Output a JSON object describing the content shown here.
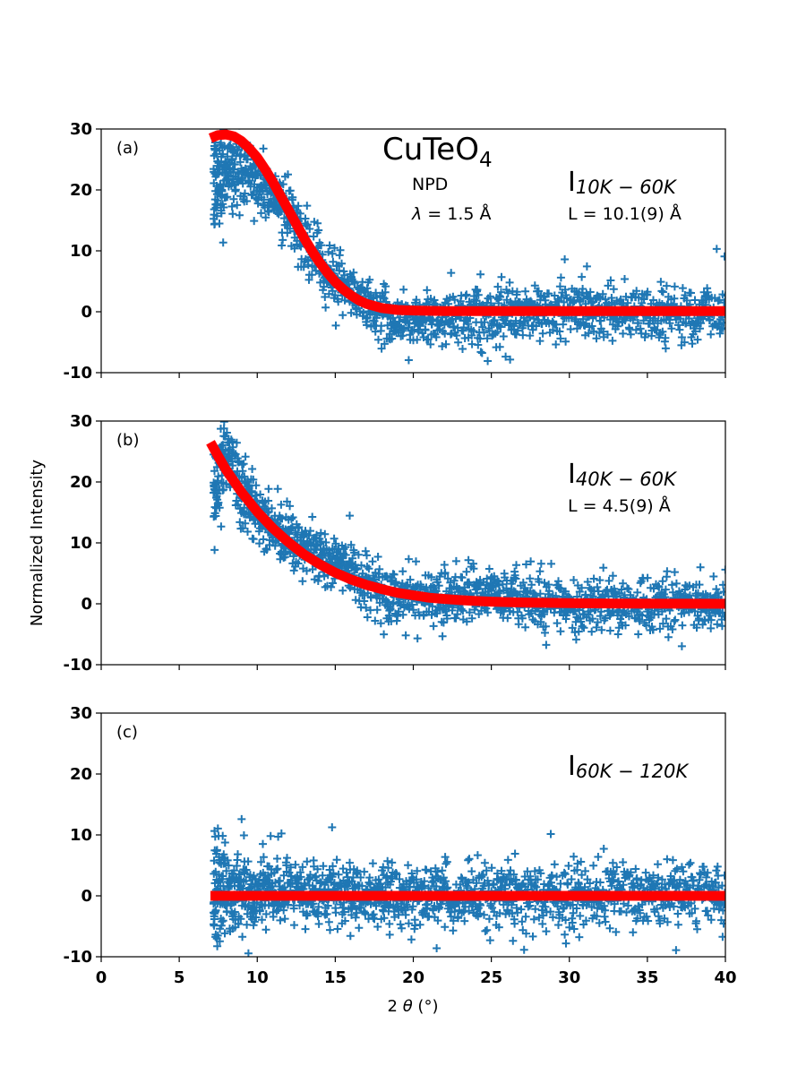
{
  "figure": {
    "title_base": "CuTeO",
    "title_sub": "4",
    "ylabel": "Normalized Intensity",
    "xlabel_prefix": "2 ",
    "xlabel_theta": "θ",
    "xlabel_suffix": " (°)",
    "info_technique": "NPD",
    "info_lambda_symbol": "λ",
    "info_lambda_value": " = 1.5 Å"
  },
  "colors": {
    "points": "#1f77b4",
    "fit": "#ff0000",
    "axes": "#000000"
  },
  "chart_data": [
    {
      "type": "scatter",
      "panel_label": "(a)",
      "annotation_main": "I",
      "annotation_sub": "10K − 60K",
      "annotation_L": "L = 10.1(9) Å",
      "xlim": [
        0,
        40
      ],
      "ylim": [
        -10,
        30
      ],
      "xticks": [
        "0",
        "5",
        "10",
        "15",
        "20",
        "25",
        "30",
        "35",
        "40"
      ],
      "yticks": [
        "-10",
        "0",
        "10",
        "20",
        "30"
      ],
      "data_x_range": [
        7.2,
        40
      ],
      "marker": "+",
      "fit": {
        "x": [
          7,
          7.5,
          8,
          8.5,
          9,
          9.5,
          10,
          10.5,
          11,
          11.5,
          12,
          12.5,
          13,
          13.5,
          14,
          14.5,
          15,
          15.5,
          16,
          16.5,
          17,
          18,
          19,
          20,
          22,
          25,
          30,
          35,
          40
        ],
        "y": [
          28.5,
          29.0,
          29.1,
          28.8,
          28.0,
          26.8,
          25.3,
          23.4,
          21.3,
          19.0,
          16.7,
          14.4,
          12.1,
          10.0,
          8.1,
          6.4,
          4.9,
          3.7,
          2.7,
          1.9,
          1.3,
          0.6,
          0.3,
          0.2,
          0.1,
          0.1,
          0.1,
          0.1,
          0.1
        ]
      },
      "trend": {
        "x": [
          7.2,
          8,
          9,
          10,
          11,
          12,
          13,
          14,
          15,
          16,
          17,
          18,
          19,
          20,
          22,
          24,
          25.5,
          27,
          30,
          33,
          36,
          40
        ],
        "y": [
          20,
          24,
          23.5,
          21.5,
          19,
          16,
          12,
          8.5,
          5.5,
          3,
          1.2,
          -0.3,
          -1.2,
          -1.5,
          -1,
          -0.6,
          -1.6,
          -0.2,
          0.5,
          0,
          -0.2,
          0.2
        ]
      },
      "noise": 2.3
    },
    {
      "type": "scatter",
      "panel_label": "(b)",
      "annotation_main": "I",
      "annotation_sub": "40K − 60K",
      "annotation_L": "L = 4.5(9) Å",
      "xlim": [
        0,
        40
      ],
      "ylim": [
        -10,
        30
      ],
      "xticks": [
        "0",
        "5",
        "10",
        "15",
        "20",
        "25",
        "30",
        "35",
        "40"
      ],
      "yticks": [
        "-10",
        "0",
        "10",
        "20",
        "30"
      ],
      "data_x_range": [
        7.2,
        40
      ],
      "marker": "+",
      "fit": {
        "x": [
          7,
          7.5,
          8,
          9,
          10,
          11,
          12,
          13,
          14,
          15,
          16,
          17,
          18,
          19,
          20,
          21,
          22,
          23,
          24,
          25,
          27,
          30,
          33,
          36,
          40
        ],
        "y": [
          26.5,
          24.2,
          22.0,
          18.3,
          15.1,
          12.4,
          10.1,
          8.1,
          6.5,
          5.1,
          4.0,
          3.1,
          2.4,
          1.8,
          1.4,
          1.0,
          0.8,
          0.6,
          0.45,
          0.35,
          0.2,
          0.1,
          0.05,
          0.02,
          0.0
        ]
      },
      "trend": {
        "x": [
          7.2,
          8,
          9,
          10,
          11,
          12,
          13,
          14,
          15,
          16,
          17,
          18,
          20,
          22,
          24,
          26,
          28,
          30,
          33,
          36,
          40
        ],
        "y": [
          18,
          26,
          19,
          14,
          12,
          11,
          9,
          8,
          7,
          6,
          3,
          1.5,
          1.5,
          1,
          2,
          1,
          0.5,
          0,
          -0.3,
          0,
          -0.2
        ]
      },
      "noise": 2.2
    },
    {
      "type": "scatter",
      "panel_label": "(c)",
      "annotation_main": "I",
      "annotation_sub": "60K − 120K",
      "annotation_L": "",
      "xlim": [
        0,
        40
      ],
      "ylim": [
        -10,
        30
      ],
      "xticks": [
        "0",
        "5",
        "10",
        "15",
        "20",
        "25",
        "30",
        "35",
        "40"
      ],
      "yticks": [
        "-10",
        "0",
        "10",
        "20",
        "30"
      ],
      "data_x_range": [
        7.2,
        40
      ],
      "marker": "+",
      "fit": {
        "x": [
          7,
          40
        ],
        "y": [
          0,
          0
        ]
      },
      "trend": {
        "x": [
          7.2,
          8,
          10,
          15,
          20,
          30,
          40
        ],
        "y": [
          2,
          1,
          0.5,
          0,
          0,
          0,
          0
        ]
      },
      "noise": 2.6
    }
  ]
}
